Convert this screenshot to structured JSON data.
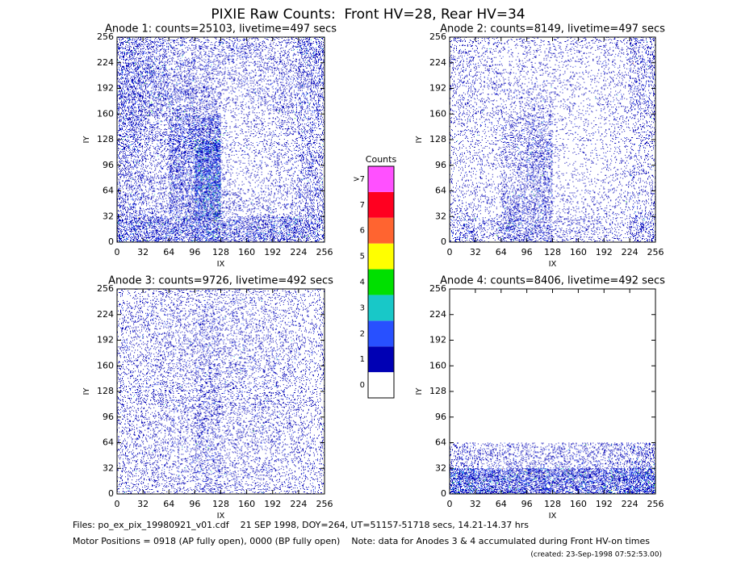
{
  "title": "PIXIE Raw Counts:  Front HV=28, Rear HV=34",
  "chart_data": [
    {
      "type": "heatmap",
      "title": "Anode 1: counts=25103, livetime=497 secs",
      "xlabel": "IX",
      "ylabel": "IY",
      "xlim": [
        0,
        256
      ],
      "ylim": [
        0,
        256
      ],
      "xticks": [
        0,
        32,
        64,
        96,
        128,
        160,
        192,
        224,
        256
      ],
      "yticks": [
        0,
        32,
        64,
        96,
        128,
        160,
        192,
        224,
        256
      ],
      "x_bins": [
        0,
        32,
        64,
        96,
        128,
        160,
        192,
        224,
        256
      ],
      "y_bins": [
        0,
        32,
        64,
        96,
        128,
        160,
        192,
        224,
        256
      ],
      "values": [
        [
          0.5,
          0.5,
          0.5,
          0.7,
          0.4,
          0.45,
          0.5,
          0.4
        ],
        [
          0.3,
          0.2,
          0.4,
          0.9,
          0.15,
          0.15,
          0.15,
          0.25
        ],
        [
          0.3,
          0.2,
          0.45,
          1.0,
          0.1,
          0.1,
          0.15,
          0.25
        ],
        [
          0.3,
          0.2,
          0.45,
          1.0,
          0.1,
          0.12,
          0.15,
          0.25
        ],
        [
          0.35,
          0.25,
          0.45,
          0.6,
          0.1,
          0.12,
          0.15,
          0.25
        ],
        [
          0.4,
          0.35,
          0.35,
          0.25,
          0.12,
          0.15,
          0.2,
          0.3
        ],
        [
          0.45,
          0.35,
          0.25,
          0.2,
          0.15,
          0.15,
          0.2,
          0.3
        ],
        [
          0.4,
          0.3,
          0.2,
          0.2,
          0.2,
          0.2,
          0.2,
          0.35
        ]
      ]
    },
    {
      "type": "heatmap",
      "title": "Anode 2: counts=8149, livetime=497 secs",
      "xlabel": "IX",
      "ylabel": "IY",
      "xlim": [
        0,
        256
      ],
      "ylim": [
        0,
        256
      ],
      "xticks": [
        0,
        32,
        64,
        96,
        128,
        160,
        192,
        224,
        256
      ],
      "yticks": [
        0,
        32,
        64,
        96,
        128,
        160,
        192,
        224,
        256
      ],
      "x_bins": [
        0,
        32,
        64,
        96,
        128,
        160,
        192,
        224,
        256
      ],
      "y_bins": [
        0,
        32,
        64,
        96,
        128,
        160,
        192,
        224,
        256
      ],
      "values": [
        [
          0.3,
          0.2,
          0.35,
          0.35,
          0.15,
          0.15,
          0.15,
          0.3
        ],
        [
          0.1,
          0.1,
          0.3,
          0.3,
          0.08,
          0.08,
          0.08,
          0.15
        ],
        [
          0.1,
          0.1,
          0.2,
          0.35,
          0.06,
          0.06,
          0.08,
          0.15
        ],
        [
          0.1,
          0.1,
          0.2,
          0.35,
          0.06,
          0.06,
          0.08,
          0.15
        ],
        [
          0.12,
          0.1,
          0.2,
          0.25,
          0.06,
          0.06,
          0.08,
          0.15
        ],
        [
          0.15,
          0.12,
          0.12,
          0.15,
          0.08,
          0.08,
          0.1,
          0.2
        ],
        [
          0.15,
          0.12,
          0.1,
          0.1,
          0.08,
          0.08,
          0.1,
          0.2
        ],
        [
          0.15,
          0.12,
          0.1,
          0.1,
          0.1,
          0.1,
          0.12,
          0.25
        ]
      ]
    },
    {
      "type": "heatmap",
      "title": "Anode 3: counts=9726, livetime=492 secs",
      "xlabel": "IX",
      "ylabel": "IY",
      "xlim": [
        0,
        256
      ],
      "ylim": [
        0,
        256
      ],
      "xticks": [
        0,
        32,
        64,
        96,
        128,
        160,
        192,
        224,
        256
      ],
      "yticks": [
        0,
        32,
        64,
        96,
        128,
        160,
        192,
        224,
        256
      ],
      "x_bins": [
        0,
        32,
        64,
        96,
        128,
        160,
        192,
        224,
        256
      ],
      "y_bins": [
        0,
        32,
        64,
        96,
        128,
        160,
        192,
        224,
        256
      ],
      "values": [
        [
          0.15,
          0.15,
          0.15,
          0.25,
          0.15,
          0.15,
          0.15,
          0.12
        ],
        [
          0.15,
          0.15,
          0.15,
          0.25,
          0.15,
          0.15,
          0.15,
          0.12
        ],
        [
          0.15,
          0.15,
          0.16,
          0.25,
          0.16,
          0.15,
          0.15,
          0.12
        ],
        [
          0.16,
          0.16,
          0.16,
          0.25,
          0.16,
          0.16,
          0.15,
          0.12
        ],
        [
          0.15,
          0.16,
          0.16,
          0.25,
          0.16,
          0.16,
          0.15,
          0.12
        ],
        [
          0.15,
          0.15,
          0.16,
          0.22,
          0.15,
          0.15,
          0.15,
          0.12
        ],
        [
          0.14,
          0.15,
          0.15,
          0.2,
          0.15,
          0.15,
          0.14,
          0.1
        ],
        [
          0.12,
          0.14,
          0.14,
          0.18,
          0.14,
          0.14,
          0.12,
          0.1
        ]
      ]
    },
    {
      "type": "heatmap",
      "title": "Anode 4: counts=8406, livetime=492 secs",
      "xlabel": "IX",
      "ylabel": "IY",
      "xlim": [
        0,
        256
      ],
      "ylim": [
        0,
        256
      ],
      "xticks": [
        0,
        32,
        64,
        96,
        128,
        160,
        192,
        224,
        256
      ],
      "yticks": [
        0,
        32,
        64,
        96,
        128,
        160,
        192,
        224,
        256
      ],
      "x_bins": [
        0,
        32,
        64,
        96,
        128,
        160,
        192,
        224,
        256
      ],
      "y_bins": [
        0,
        32,
        64,
        96,
        128,
        160,
        192,
        224,
        256
      ],
      "values": [
        [
          0.8,
          0.7,
          0.7,
          0.7,
          0.6,
          0.6,
          0.7,
          0.8
        ],
        [
          0.25,
          0.2,
          0.2,
          0.2,
          0.2,
          0.2,
          0.25,
          0.3
        ],
        [
          0,
          0,
          0,
          0,
          0,
          0,
          0,
          0
        ],
        [
          0,
          0,
          0,
          0,
          0,
          0,
          0,
          0
        ],
        [
          0,
          0,
          0,
          0,
          0,
          0,
          0,
          0
        ],
        [
          0,
          0,
          0,
          0,
          0,
          0,
          0,
          0
        ],
        [
          0,
          0,
          0,
          0,
          0,
          0,
          0,
          0
        ],
        [
          0,
          0,
          0,
          0,
          0,
          0,
          0,
          0
        ]
      ]
    },
    {
      "type": "colorbar",
      "title": "Counts",
      "categories": [
        "0",
        "1",
        "2",
        "3",
        "4",
        "5",
        "6",
        "7",
        ">7"
      ],
      "colors": [
        "#ffffff",
        "#0000b4",
        "#2850ff",
        "#18c8c8",
        "#00e000",
        "#ffff00",
        "#ff6430",
        "#ff0020",
        "#ff50ff"
      ]
    }
  ],
  "footer": [
    "Files: po_ex_pix_19980921_v01.cdf    21 SEP 1998, DOY=264, UT=51157-51718 secs, 14.21-14.37 hrs",
    "Motor Positions = 0918 (AP fully open), 0000 (BP fully open)    Note: data for Anodes 3 & 4 accumulated during Front HV-on times",
    "(created: 23-Sep-1998 07:52:53.00)"
  ]
}
